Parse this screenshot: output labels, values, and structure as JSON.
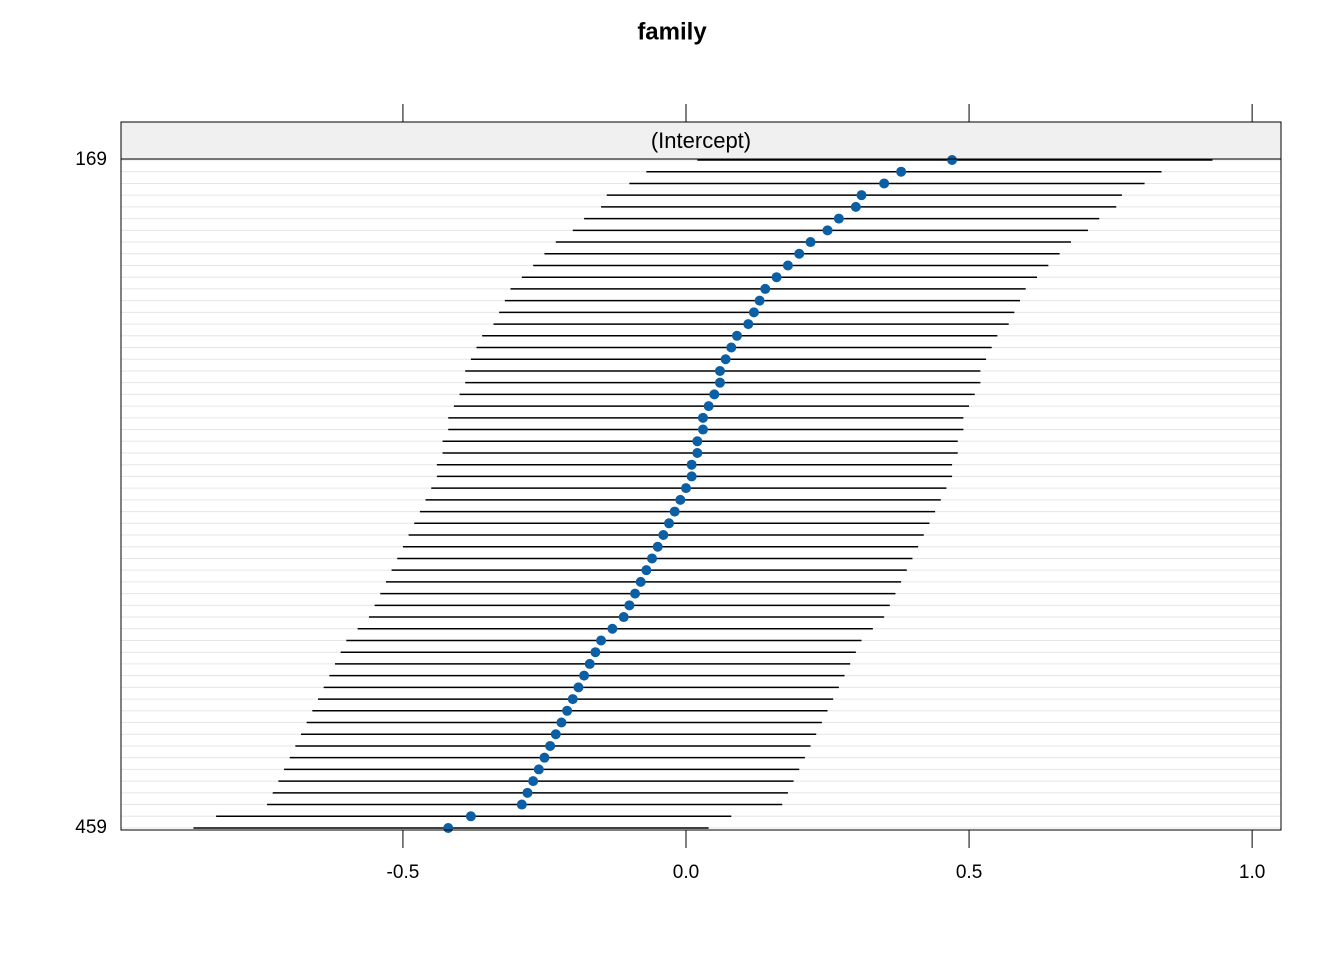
{
  "chart_data": {
    "type": "dotplot",
    "title": "family",
    "strip": "(Intercept)",
    "categories": [
      "169",
      null,
      null,
      null,
      null,
      null,
      null,
      null,
      null,
      null,
      null,
      null,
      null,
      null,
      null,
      null,
      null,
      null,
      null,
      null,
      null,
      null,
      null,
      null,
      null,
      null,
      null,
      null,
      null,
      null,
      null,
      null,
      null,
      null,
      null,
      null,
      null,
      null,
      null,
      null,
      null,
      null,
      null,
      null,
      null,
      null,
      null,
      null,
      null,
      null,
      null,
      null,
      null,
      null,
      null,
      null,
      null,
      "459"
    ],
    "values": [
      0.47,
      0.38,
      0.35,
      0.31,
      0.3,
      0.27,
      0.25,
      0.22,
      0.2,
      0.18,
      0.16,
      0.14,
      0.13,
      0.12,
      0.11,
      0.09,
      0.08,
      0.07,
      0.06,
      0.06,
      0.05,
      0.04,
      0.03,
      0.03,
      0.02,
      0.02,
      0.01,
      0.01,
      0.0,
      -0.01,
      -0.02,
      -0.03,
      -0.04,
      -0.05,
      -0.06,
      -0.07,
      -0.08,
      -0.09,
      -0.1,
      -0.11,
      -0.13,
      -0.15,
      -0.16,
      -0.17,
      -0.18,
      -0.19,
      -0.2,
      -0.21,
      -0.22,
      -0.23,
      -0.24,
      -0.25,
      -0.26,
      -0.27,
      -0.28,
      -0.29,
      -0.38,
      -0.42
    ],
    "lower": [
      0.02,
      -0.07,
      -0.1,
      -0.14,
      -0.15,
      -0.18,
      -0.2,
      -0.23,
      -0.25,
      -0.27,
      -0.29,
      -0.31,
      -0.32,
      -0.33,
      -0.34,
      -0.36,
      -0.37,
      -0.38,
      -0.39,
      -0.39,
      -0.4,
      -0.41,
      -0.42,
      -0.42,
      -0.43,
      -0.43,
      -0.44,
      -0.44,
      -0.45,
      -0.46,
      -0.47,
      -0.48,
      -0.49,
      -0.5,
      -0.51,
      -0.52,
      -0.53,
      -0.54,
      -0.55,
      -0.56,
      -0.58,
      -0.6,
      -0.61,
      -0.62,
      -0.63,
      -0.64,
      -0.65,
      -0.66,
      -0.67,
      -0.68,
      -0.69,
      -0.7,
      -0.71,
      -0.72,
      -0.73,
      -0.74,
      -0.83,
      -0.87
    ],
    "upper": [
      0.93,
      0.84,
      0.81,
      0.77,
      0.76,
      0.73,
      0.71,
      0.68,
      0.66,
      0.64,
      0.62,
      0.6,
      0.59,
      0.58,
      0.57,
      0.55,
      0.54,
      0.53,
      0.52,
      0.52,
      0.51,
      0.5,
      0.49,
      0.49,
      0.48,
      0.48,
      0.47,
      0.47,
      0.46,
      0.45,
      0.44,
      0.43,
      0.42,
      0.41,
      0.4,
      0.39,
      0.38,
      0.37,
      0.36,
      0.35,
      0.33,
      0.31,
      0.3,
      0.29,
      0.28,
      0.27,
      0.26,
      0.25,
      0.24,
      0.23,
      0.22,
      0.21,
      0.2,
      0.19,
      0.18,
      0.17,
      0.08,
      0.04
    ],
    "color": "#0b5fa5",
    "xlim": [
      -0.998,
      1.051
    ],
    "xticks": [
      -0.5,
      {
        "value": 0,
        "label": "0.0"
      },
      0.5,
      {
        "value": 1,
        "label": "1.0"
      }
    ]
  }
}
